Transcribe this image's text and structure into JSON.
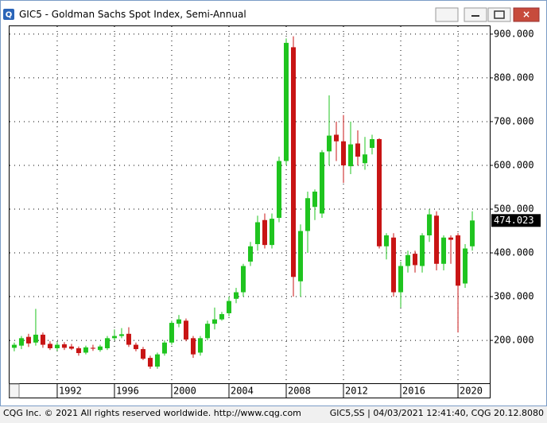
{
  "window": {
    "title": "GIC5 - Goldman Sachs Spot Index, Semi-Annual"
  },
  "footer": {
    "left": "CQG Inc. © 2021 All rights reserved worldwide. http://www.cqg.com",
    "right": "GIC5,SS | 04/03/2021 12:41:40, CQG 20.12.8080"
  },
  "chart_data": {
    "type": "candlestick",
    "x": [
      1989,
      1989.5,
      1990,
      1990.5,
      1991,
      1991.5,
      1992,
      1992.5,
      1993,
      1993.5,
      1994,
      1994.5,
      1995,
      1995.5,
      1996,
      1996.5,
      1997,
      1997.5,
      1998,
      1998.5,
      1999,
      1999.5,
      2000,
      2000.5,
      2001,
      2001.5,
      2002,
      2002.5,
      2003,
      2003.5,
      2004,
      2004.5,
      2005,
      2005.5,
      2006,
      2006.5,
      2007,
      2007.5,
      2008,
      2008.5,
      2009,
      2009.5,
      2010,
      2010.5,
      2011,
      2011.5,
      2012,
      2012.5,
      2013,
      2013.5,
      2014,
      2014.5,
      2015,
      2015.5,
      2016,
      2016.5,
      2017,
      2017.5,
      2018,
      2018.5,
      2019,
      2019.5,
      2020,
      2020.5,
      2021
    ],
    "open": [
      183,
      188,
      208,
      195,
      213,
      192,
      182,
      191,
      186,
      182,
      172,
      183,
      178,
      182,
      205,
      210,
      215,
      190,
      180,
      160,
      140,
      170,
      195,
      238,
      245,
      205,
      172,
      205,
      238,
      248,
      262,
      295,
      310,
      380,
      420,
      475,
      418,
      480,
      610,
      870,
      335,
      450,
      505,
      490,
      632,
      670,
      655,
      598,
      650,
      605,
      640,
      660,
      415,
      435,
      310,
      370,
      398,
      370,
      440,
      485,
      375,
      435,
      440,
      330,
      415
    ],
    "high": [
      195,
      210,
      215,
      272,
      218,
      198,
      196,
      196,
      192,
      186,
      188,
      190,
      190,
      210,
      225,
      228,
      230,
      195,
      185,
      165,
      172,
      200,
      245,
      258,
      250,
      210,
      210,
      245,
      275,
      265,
      300,
      320,
      375,
      425,
      485,
      490,
      490,
      620,
      890,
      895,
      465,
      540,
      545,
      635,
      760,
      700,
      715,
      700,
      680,
      665,
      670,
      662,
      445,
      445,
      380,
      405,
      405,
      445,
      500,
      495,
      440,
      440,
      445,
      420,
      495
    ],
    "low": [
      175,
      180,
      185,
      188,
      183,
      178,
      176,
      178,
      178,
      165,
      168,
      176,
      174,
      178,
      200,
      205,
      185,
      175,
      155,
      135,
      135,
      165,
      190,
      230,
      198,
      160,
      165,
      200,
      225,
      245,
      255,
      285,
      300,
      370,
      405,
      410,
      410,
      470,
      600,
      300,
      300,
      400,
      475,
      480,
      600,
      610,
      560,
      580,
      600,
      590,
      625,
      410,
      385,
      300,
      275,
      355,
      355,
      355,
      425,
      360,
      360,
      375,
      218,
      320,
      405
    ],
    "close": [
      190,
      205,
      193,
      213,
      190,
      182,
      190,
      183,
      181,
      171,
      184,
      181,
      186,
      205,
      210,
      214,
      190,
      180,
      158,
      140,
      168,
      195,
      240,
      248,
      202,
      168,
      205,
      238,
      248,
      260,
      290,
      310,
      370,
      415,
      470,
      418,
      478,
      610,
      880,
      345,
      450,
      525,
      540,
      630,
      668,
      655,
      600,
      648,
      620,
      625,
      660,
      415,
      440,
      310,
      370,
      395,
      372,
      440,
      488,
      375,
      435,
      430,
      325,
      410,
      474.023
    ],
    "last_price_label": "474.023",
    "up_color": "#1fc41f",
    "down_color": "#c81414",
    "xlim": [
      1988.67,
      2022.22
    ],
    "ylim": [
      102,
      918
    ],
    "xticks": [
      1992,
      1996,
      2000,
      2004,
      2008,
      2012,
      2016,
      2020
    ],
    "yticks": [
      {
        "value": 200,
        "label": "200.000"
      },
      {
        "value": 300,
        "label": "300.000"
      },
      {
        "value": 400,
        "label": "400.000"
      },
      {
        "value": 500,
        "label": "500.000"
      },
      {
        "value": 600,
        "label": "600.000"
      },
      {
        "value": 700,
        "label": "700.000"
      },
      {
        "value": 800,
        "label": "800.000"
      },
      {
        "value": 900,
        "label": "900.000"
      }
    ],
    "grid": true
  }
}
